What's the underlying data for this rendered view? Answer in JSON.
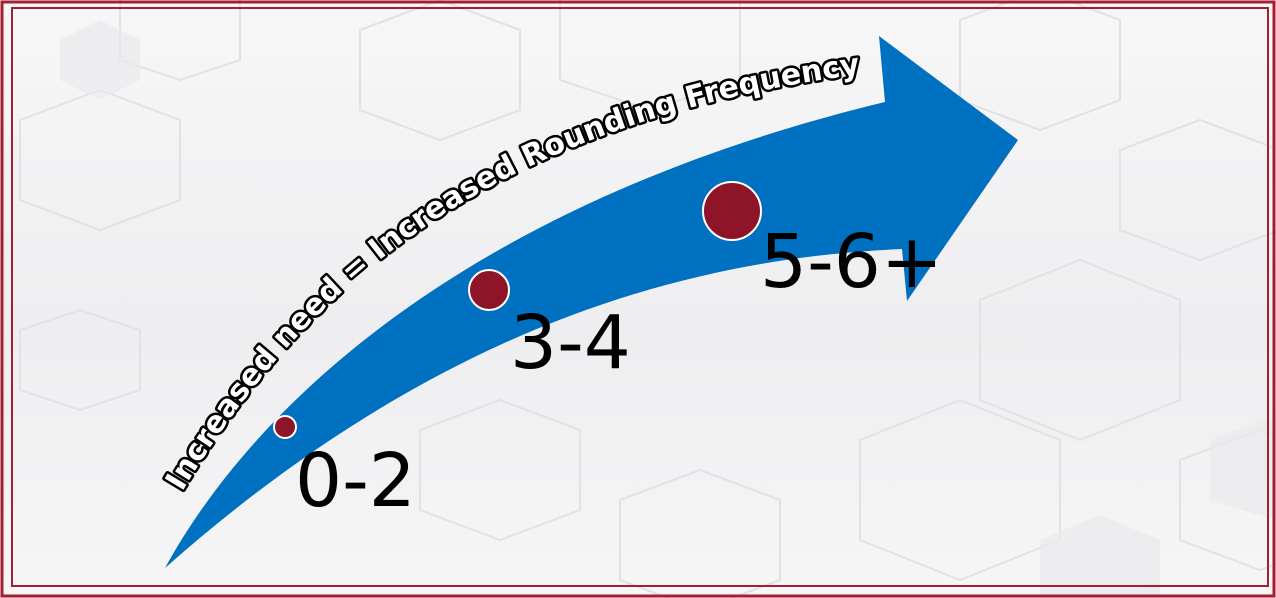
{
  "diagram": {
    "arrow_caption": "Increased need = Increased Rounding Frequency",
    "levels": [
      {
        "label": "0-2",
        "marker": "small-circle"
      },
      {
        "label": "3-4",
        "marker": "medium-circle"
      },
      {
        "label": "5-6+",
        "marker": "large-circle"
      }
    ]
  },
  "colors": {
    "arrow": "#0070c0",
    "marker": "#8e1427",
    "frame": "#a31f34",
    "background": "#f3f3f4"
  }
}
